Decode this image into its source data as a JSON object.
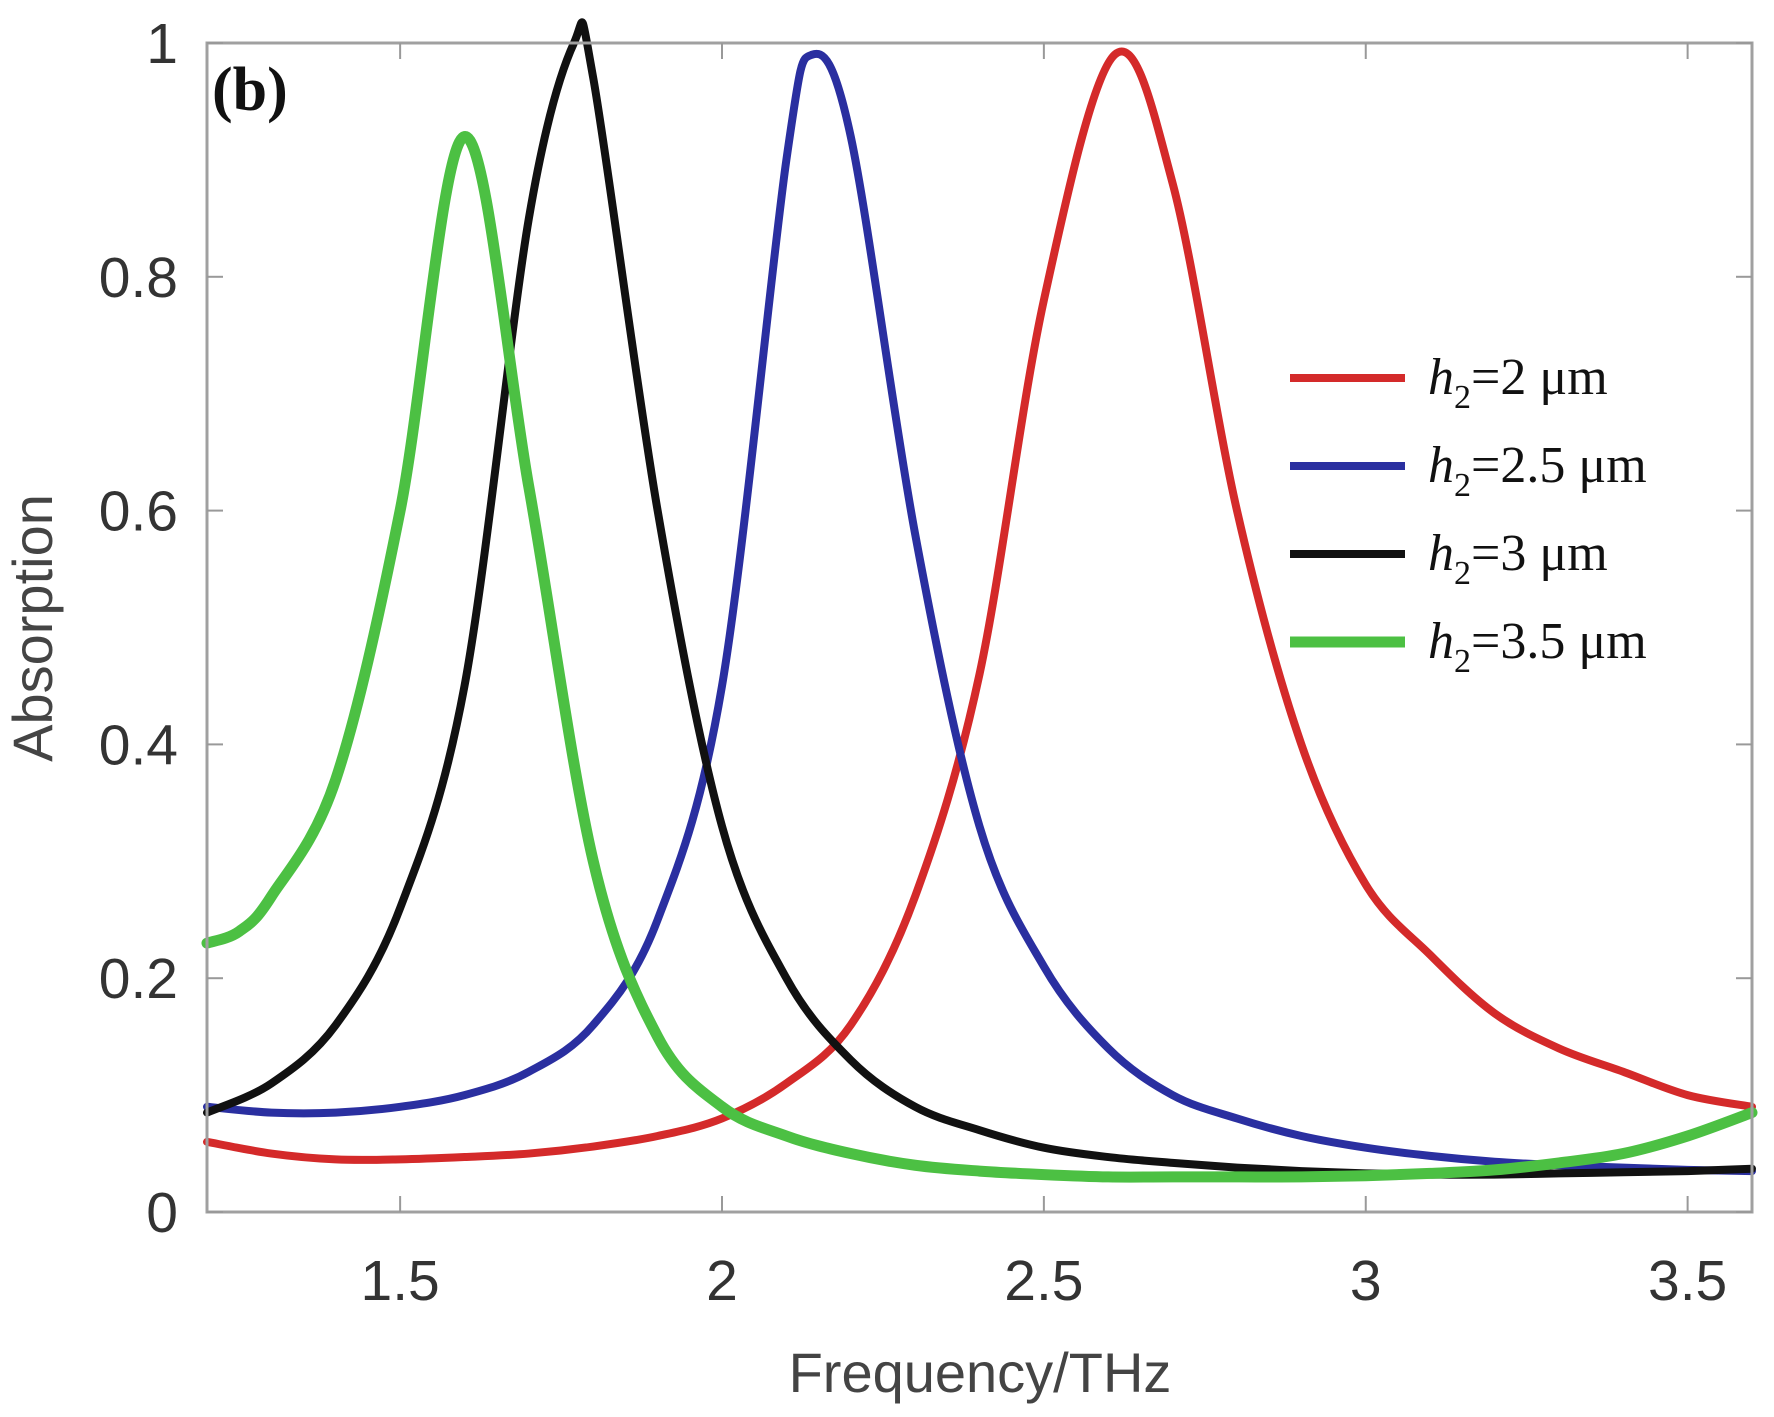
{
  "chart_data": {
    "type": "line",
    "panel_label": "(b)",
    "xlabel": "Frequency/THz",
    "ylabel": "Absorption",
    "xlim": [
      1.2,
      3.6
    ],
    "ylim": [
      0,
      1
    ],
    "xticks": [
      1.5,
      2,
      2.5,
      3,
      3.5
    ],
    "xtick_labels": [
      "1.5",
      "2",
      "2.5",
      "3",
      "3.5"
    ],
    "yticks": [
      0,
      0.2,
      0.4,
      0.6,
      0.8,
      1
    ],
    "ytick_labels": [
      "0",
      "0.2",
      "0.4",
      "0.6",
      "0.8",
      "1"
    ],
    "grid": false,
    "legend_position": "right",
    "series": [
      {
        "name": "h2=2 μm",
        "legend_var": "h",
        "legend_sub": "2",
        "legend_rest": "=2 μm",
        "color": "#d42a2a",
        "x": [
          1.2,
          1.3,
          1.4,
          1.5,
          1.6,
          1.7,
          1.8,
          1.9,
          2.0,
          2.1,
          2.2,
          2.3,
          2.4,
          2.5,
          2.61,
          2.7,
          2.8,
          2.9,
          3.0,
          3.1,
          3.2,
          3.3,
          3.4,
          3.5,
          3.6
        ],
        "y": [
          0.06,
          0.05,
          0.045,
          0.045,
          0.047,
          0.05,
          0.056,
          0.065,
          0.08,
          0.11,
          0.16,
          0.27,
          0.46,
          0.78,
          0.99,
          0.88,
          0.6,
          0.4,
          0.28,
          0.22,
          0.17,
          0.14,
          0.12,
          0.1,
          0.09
        ]
      },
      {
        "name": "h2=2.5 μm",
        "legend_var": "h",
        "legend_sub": "2",
        "legend_rest": "=2.5 μm",
        "color": "#2a2fa0",
        "x": [
          1.2,
          1.3,
          1.4,
          1.5,
          1.6,
          1.7,
          1.8,
          1.9,
          2.0,
          2.1,
          2.14,
          2.2,
          2.3,
          2.4,
          2.5,
          2.6,
          2.7,
          2.8,
          2.9,
          3.0,
          3.1,
          3.2,
          3.3,
          3.4,
          3.5,
          3.6
        ],
        "y": [
          0.09,
          0.085,
          0.085,
          0.09,
          0.1,
          0.12,
          0.16,
          0.25,
          0.45,
          0.9,
          0.99,
          0.92,
          0.58,
          0.33,
          0.21,
          0.14,
          0.1,
          0.08,
          0.065,
          0.055,
          0.048,
          0.043,
          0.04,
          0.038,
          0.036,
          0.035
        ]
      },
      {
        "name": "h2=3 μm",
        "legend_var": "h",
        "legend_sub": "2",
        "legend_rest": "=3 μm",
        "color": "#111111",
        "x": [
          1.2,
          1.3,
          1.4,
          1.5,
          1.6,
          1.7,
          1.77,
          1.8,
          1.9,
          2.0,
          2.1,
          2.2,
          2.3,
          2.4,
          2.5,
          2.6,
          2.7,
          2.8,
          2.9,
          3.0,
          3.1,
          3.2,
          3.3,
          3.4,
          3.5,
          3.6
        ],
        "y": [
          0.085,
          0.11,
          0.16,
          0.26,
          0.45,
          0.85,
          1.0,
          0.97,
          0.6,
          0.33,
          0.2,
          0.13,
          0.09,
          0.07,
          0.055,
          0.047,
          0.042,
          0.038,
          0.035,
          0.033,
          0.032,
          0.032,
          0.033,
          0.034,
          0.035,
          0.037
        ]
      },
      {
        "name": "h2=3.5 μm",
        "legend_var": "h",
        "legend_sub": "2",
        "legend_rest": "=3.5 μm",
        "color": "#4cc043",
        "x": [
          1.2,
          1.25,
          1.3,
          1.4,
          1.5,
          1.6,
          1.7,
          1.8,
          1.9,
          2.0,
          2.1,
          2.2,
          2.3,
          2.4,
          2.5,
          2.6,
          2.7,
          2.8,
          2.9,
          3.0,
          3.1,
          3.2,
          3.3,
          3.4,
          3.5,
          3.6
        ],
        "y": [
          0.23,
          0.24,
          0.27,
          0.37,
          0.6,
          0.92,
          0.62,
          0.3,
          0.15,
          0.09,
          0.065,
          0.05,
          0.04,
          0.035,
          0.032,
          0.03,
          0.03,
          0.03,
          0.03,
          0.031,
          0.033,
          0.036,
          0.042,
          0.05,
          0.065,
          0.085
        ]
      }
    ]
  }
}
